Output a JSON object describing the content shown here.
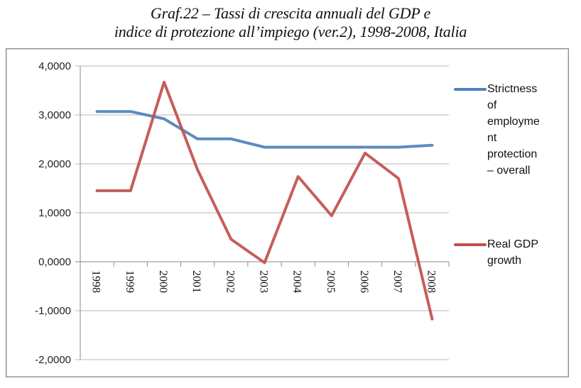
{
  "chart_data": {
    "type": "line",
    "title": "Graf.22 – Tassi di crescita annuali del GDP e indice di protezione all’impiego (ver.2), 1998-2008, Italia",
    "title_lines": [
      "Graf.22 – Tassi di crescita annuali del GDP e",
      "indice di protezione all’impiego (ver.2), 1998-2008, Italia"
    ],
    "xlabel": "",
    "ylabel": "",
    "categories": [
      "1998",
      "1999",
      "2000",
      "2001",
      "2002",
      "2003",
      "2004",
      "2005",
      "2006",
      "2007",
      "2008"
    ],
    "ylim": [
      -2,
      4
    ],
    "yticks": [
      4,
      3,
      2,
      1,
      0,
      -1,
      -2
    ],
    "ytick_labels": [
      "4,0000",
      "3,0000",
      "2,0000",
      "1,0000",
      "0,0000",
      "-1,0000",
      "-2,0000"
    ],
    "grid": true,
    "legend_position": "right",
    "series": [
      {
        "name": "Strictness of employment protection – overall",
        "legend_lines": [
          "Strictness",
          "of",
          "employme",
          "nt",
          "protection",
          "– overall"
        ],
        "color": "#4f81bd",
        "values": [
          3.07,
          3.07,
          2.92,
          2.51,
          2.51,
          2.34,
          2.34,
          2.34,
          2.34,
          2.34,
          2.38
        ]
      },
      {
        "name": "Real GDP growth",
        "legend_lines": [
          "Real GDP",
          "growth"
        ],
        "color": "#c0504d",
        "values": [
          1.45,
          1.45,
          3.67,
          1.88,
          0.46,
          -0.02,
          1.74,
          0.94,
          2.22,
          1.7,
          -1.17
        ]
      }
    ]
  }
}
